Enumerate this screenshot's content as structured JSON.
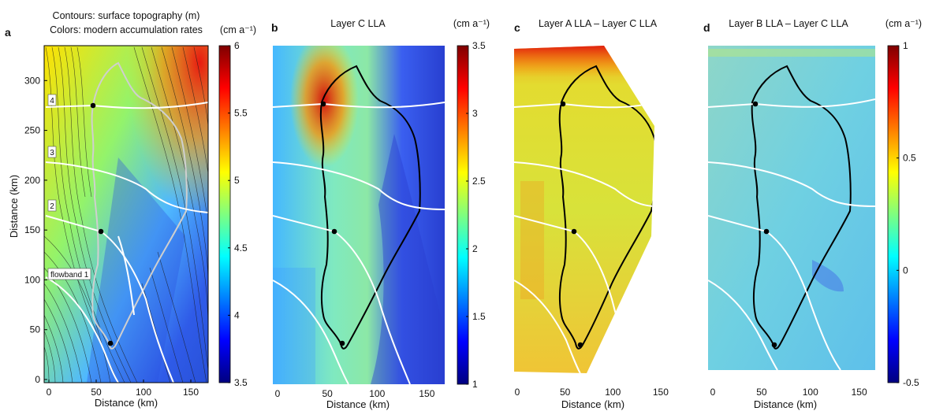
{
  "chart_data": [
    {
      "type": "heatmap",
      "panel_letter": "a",
      "title_lines": [
        "Contours: surface topography (m)",
        "Colors: modern accumulation rates"
      ],
      "xlabel": "Distance (km)",
      "ylabel": "Distance (km)",
      "xlim": [
        0,
        160
      ],
      "ylim": [
        0,
        335
      ],
      "xticks": [
        0,
        50,
        100,
        150
      ],
      "yticks": [
        0,
        50,
        100,
        150,
        200,
        250,
        300
      ],
      "colorbar": {
        "unit": "(cm a⁻¹)",
        "min": 3.5,
        "max": 6,
        "ticks": [
          3.5,
          4,
          4.5,
          5,
          5.5,
          6
        ]
      },
      "flowband_labels": [
        "flowband 1",
        "2",
        "3",
        "4"
      ]
    },
    {
      "type": "heatmap",
      "panel_letter": "b",
      "title": "Layer C LLA",
      "xlabel": "Distance (km)",
      "xlim": [
        0,
        160
      ],
      "xticks": [
        0,
        50,
        100,
        150
      ],
      "colorbar": {
        "unit": "(cm a⁻¹)",
        "min": 1,
        "max": 3.5,
        "ticks": [
          1,
          1.5,
          2,
          2.5,
          3,
          3.5
        ]
      }
    },
    {
      "type": "heatmap",
      "panel_letter": "c",
      "title": "Layer A LLA – Layer C LLA",
      "xlabel": "Distance (km)",
      "xlim": [
        0,
        160
      ],
      "xticks": [
        0,
        50,
        100,
        150
      ]
    },
    {
      "type": "heatmap",
      "panel_letter": "d",
      "title": "Layer B LLA – Layer C LLA",
      "xlabel": "Distance (km)",
      "xlim": [
        0,
        160
      ],
      "xticks": [
        0,
        50,
        100,
        150
      ],
      "colorbar": {
        "unit": "(cm a⁻¹)",
        "min": -0.5,
        "max": 1,
        "ticks": [
          -0.5,
          0,
          0.5,
          1
        ]
      }
    }
  ],
  "colors": {
    "jet_stops": [
      "#00007f",
      "#0000ff",
      "#007fff",
      "#00ffff",
      "#7fff7f",
      "#ffff00",
      "#ff7f00",
      "#ff0000",
      "#7f0000"
    ],
    "flowline": "#ffffff",
    "outline_a": "#cfcfcf",
    "outline_bcd": "#000000",
    "contour": "#1a1a1a"
  }
}
